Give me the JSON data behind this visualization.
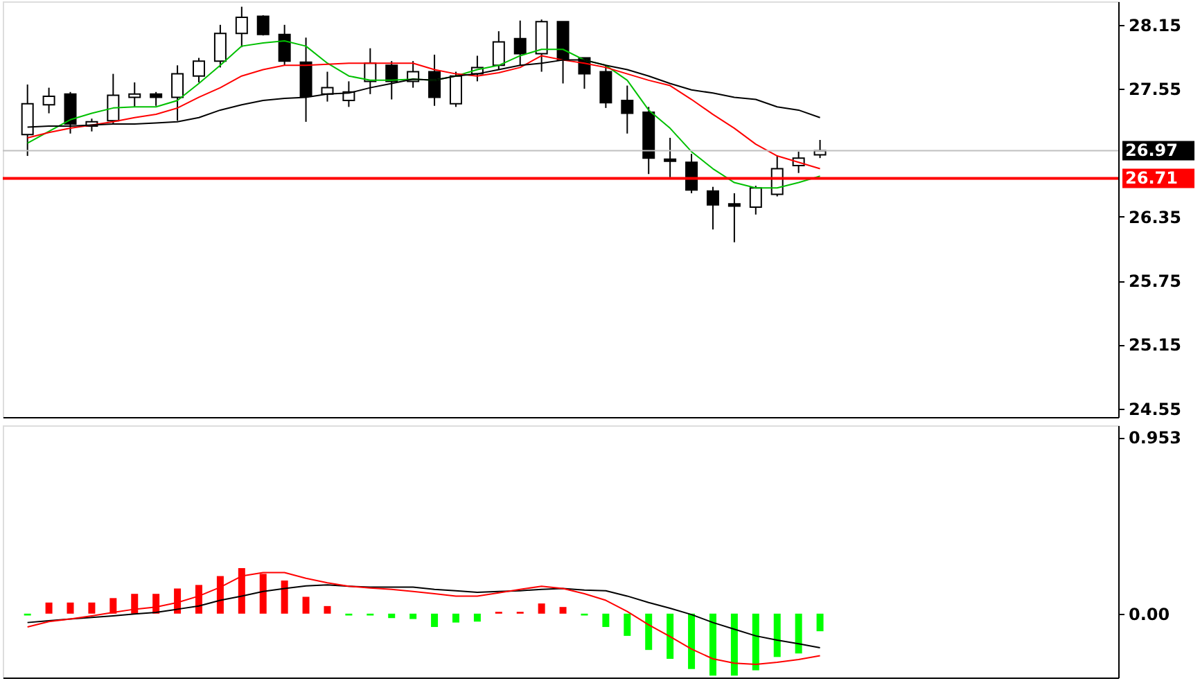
{
  "chart_data": [
    {
      "type": "candlestick",
      "categories": [
        null,
        null,
        null,
        null,
        null,
        null,
        null,
        null,
        null,
        null,
        null,
        null,
        null,
        null,
        null,
        null,
        null,
        null,
        null,
        null,
        null,
        null,
        null,
        null,
        null,
        null,
        null,
        null,
        null,
        null,
        null,
        null,
        null,
        null,
        null,
        null,
        null,
        null
      ],
      "ohlc": [
        [
          27.12,
          27.59,
          26.92,
          27.41
        ],
        [
          27.4,
          27.56,
          27.32,
          27.48
        ],
        [
          27.5,
          27.52,
          27.13,
          27.22
        ],
        [
          27.2,
          27.27,
          27.15,
          27.24
        ],
        [
          27.25,
          27.69,
          27.22,
          27.49
        ],
        [
          27.47,
          27.61,
          27.38,
          27.5
        ],
        [
          27.5,
          27.52,
          27.39,
          27.47
        ],
        [
          27.47,
          27.77,
          27.25,
          27.69
        ],
        [
          27.67,
          27.84,
          27.61,
          27.81
        ],
        [
          27.81,
          28.15,
          27.75,
          28.07
        ],
        [
          28.07,
          28.32,
          27.94,
          28.22
        ],
        [
          28.23,
          28.24,
          28.05,
          28.06
        ],
        [
          28.06,
          28.15,
          27.77,
          27.81
        ],
        [
          27.8,
          28.03,
          27.24,
          27.48
        ],
        [
          27.5,
          27.71,
          27.43,
          27.56
        ],
        [
          27.44,
          27.62,
          27.38,
          27.52
        ],
        [
          27.62,
          27.93,
          27.5,
          27.79
        ],
        [
          27.77,
          27.81,
          27.45,
          27.62
        ],
        [
          27.62,
          27.81,
          27.56,
          27.71
        ],
        [
          27.71,
          27.87,
          27.39,
          27.47
        ],
        [
          27.41,
          27.71,
          27.38,
          27.67
        ],
        [
          27.69,
          27.86,
          27.62,
          27.75
        ],
        [
          27.77,
          28.09,
          27.73,
          27.99
        ],
        [
          28.02,
          28.19,
          27.77,
          27.88
        ],
        [
          27.88,
          28.2,
          27.71,
          28.18
        ],
        [
          28.18,
          28.18,
          27.6,
          27.82
        ],
        [
          27.84,
          27.84,
          27.55,
          27.69
        ],
        [
          27.71,
          27.77,
          27.37,
          27.42
        ],
        [
          27.44,
          27.58,
          27.13,
          27.32
        ],
        [
          27.33,
          27.38,
          26.75,
          26.9
        ],
        [
          26.89,
          27.09,
          26.72,
          26.87
        ],
        [
          26.86,
          26.94,
          26.57,
          26.6
        ],
        [
          26.59,
          26.63,
          26.23,
          26.46
        ],
        [
          26.47,
          26.57,
          26.11,
          26.45
        ],
        [
          26.44,
          26.64,
          26.37,
          26.62
        ],
        [
          26.56,
          26.92,
          26.54,
          26.8
        ],
        [
          26.83,
          26.96,
          26.76,
          26.9
        ],
        [
          26.93,
          27.07,
          26.9,
          26.97
        ]
      ],
      "series": [
        {
          "type": "line",
          "color": "#00c000",
          "values": [
            27.04,
            27.15,
            27.26,
            27.32,
            27.37,
            27.38,
            27.38,
            27.44,
            27.6,
            27.77,
            27.95,
            27.98,
            28.0,
            27.95,
            27.79,
            27.67,
            27.63,
            27.63,
            27.64,
            27.63,
            27.67,
            27.73,
            27.77,
            27.86,
            27.92,
            27.92,
            27.82,
            27.77,
            27.63,
            27.35,
            27.18,
            26.96,
            26.8,
            26.67,
            26.62,
            26.62,
            26.67,
            26.73
          ]
        },
        {
          "type": "line",
          "color": "#ff0000",
          "values": [
            27.09,
            27.14,
            27.18,
            27.21,
            27.24,
            27.28,
            27.31,
            27.37,
            27.47,
            27.56,
            27.67,
            27.73,
            27.77,
            27.77,
            27.78,
            27.79,
            27.79,
            27.79,
            27.79,
            27.73,
            27.69,
            27.67,
            27.7,
            27.75,
            27.86,
            27.82,
            27.79,
            27.75,
            27.69,
            27.63,
            27.58,
            27.45,
            27.31,
            27.18,
            27.03,
            26.92,
            26.86,
            26.8
          ]
        },
        {
          "type": "line",
          "color": "#000000",
          "values": [
            27.19,
            27.2,
            27.2,
            27.21,
            27.22,
            27.22,
            27.23,
            27.24,
            27.28,
            27.35,
            27.4,
            27.44,
            27.46,
            27.47,
            27.5,
            27.51,
            27.56,
            27.6,
            27.64,
            27.63,
            27.67,
            27.69,
            27.73,
            27.77,
            27.79,
            27.82,
            27.82,
            27.77,
            27.73,
            27.67,
            27.6,
            27.54,
            27.51,
            27.47,
            27.45,
            27.38,
            27.35,
            27.28
          ]
        }
      ],
      "ylim": [
        24.47,
        28.37
      ],
      "yticks": [
        28.15,
        27.55,
        26.35,
        25.75,
        25.15,
        24.55
      ],
      "ref_lines": [
        {
          "axis": "y",
          "value": 26.97,
          "label": "26.97",
          "color": "#c0c0c0"
        },
        {
          "axis": "y",
          "value": 26.71,
          "label": "26.71",
          "color": "#ff0000"
        }
      ],
      "tick_labels": "y",
      "grid": false
    },
    {
      "type": "bar",
      "categories": [
        null,
        null,
        null,
        null,
        null,
        null,
        null,
        null,
        null,
        null,
        null,
        null,
        null,
        null,
        null,
        null,
        null,
        null,
        null,
        null,
        null,
        null,
        null,
        null,
        null,
        null,
        null,
        null,
        null,
        null,
        null,
        null,
        null,
        null,
        null,
        null,
        null,
        null
      ],
      "values": [
        -0.01,
        0.06,
        0.06,
        0.06,
        0.084,
        0.107,
        0.107,
        0.136,
        0.155,
        0.203,
        0.246,
        0.215,
        0.179,
        0.091,
        0.041,
        -0.01,
        -0.01,
        -0.024,
        -0.029,
        -0.072,
        -0.048,
        -0.043,
        0.01,
        0.01,
        0.055,
        0.036,
        -0.01,
        -0.072,
        -0.12,
        -0.196,
        -0.244,
        -0.299,
        -0.335,
        -0.335,
        -0.306,
        -0.234,
        -0.215,
        -0.095
      ],
      "colors": [
        "#00ff00",
        "#ff0000",
        "#ff0000",
        "#ff0000",
        "#ff0000",
        "#ff0000",
        "#ff0000",
        "#ff0000",
        "#ff0000",
        "#ff0000",
        "#ff0000",
        "#ff0000",
        "#ff0000",
        "#ff0000",
        "#ff0000",
        "#00ff00",
        "#00ff00",
        "#00ff00",
        "#00ff00",
        "#00ff00",
        "#00ff00",
        "#00ff00",
        "#ff0000",
        "#ff0000",
        "#ff0000",
        "#ff0000",
        "#00ff00",
        "#00ff00",
        "#00ff00",
        "#00ff00",
        "#00ff00",
        "#00ff00",
        "#00ff00",
        "#00ff00",
        "#00ff00",
        "#00ff00",
        "#00ff00",
        "#00ff00"
      ],
      "series": [
        {
          "type": "line",
          "color": "#000000",
          "values": [
            -0.048,
            -0.038,
            -0.029,
            -0.02,
            -0.012,
            -0.002,
            0.007,
            0.024,
            0.041,
            0.072,
            0.095,
            0.12,
            0.136,
            0.15,
            0.155,
            0.148,
            0.143,
            0.143,
            0.143,
            0.131,
            0.124,
            0.115,
            0.12,
            0.124,
            0.131,
            0.136,
            0.127,
            0.124,
            0.095,
            0.06,
            0.029,
            -0.005,
            -0.048,
            -0.084,
            -0.12,
            -0.143,
            -0.163,
            -0.184
          ]
        },
        {
          "type": "line",
          "color": "#ff0000",
          "values": [
            -0.072,
            -0.043,
            -0.029,
            -0.012,
            0.007,
            0.024,
            0.036,
            0.06,
            0.095,
            0.143,
            0.203,
            0.222,
            0.222,
            0.191,
            0.167,
            0.148,
            0.139,
            0.131,
            0.12,
            0.108,
            0.095,
            0.095,
            0.112,
            0.131,
            0.148,
            0.136,
            0.108,
            0.072,
            0.012,
            -0.06,
            -0.124,
            -0.191,
            -0.244,
            -0.267,
            -0.274,
            -0.263,
            -0.248,
            -0.227
          ]
        }
      ],
      "ylim": [
        -0.345,
        1.017
      ],
      "yticks": [
        0.953,
        {
          "value": 0,
          "label": "0.00"
        }
      ],
      "tick_labels": "y",
      "grid": false
    }
  ]
}
